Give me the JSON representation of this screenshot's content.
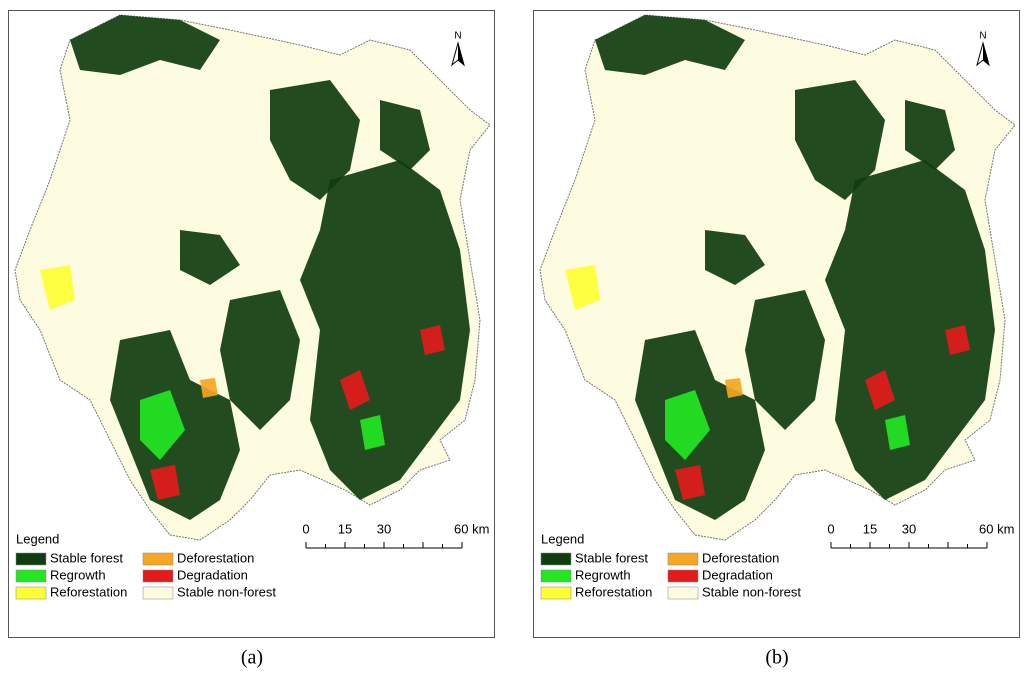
{
  "panels": [
    {
      "caption": "(a)",
      "north": "N",
      "legend_title": "Legend",
      "legend_items": [
        {
          "label": "Stable forest",
          "color": "#0f3d0f"
        },
        {
          "label": "Regrowth",
          "color": "#22e622"
        },
        {
          "label": "Reforestation",
          "color": "#ffff33"
        },
        {
          "label": "Deforestation",
          "color": "#f5a623"
        },
        {
          "label": "Degradation",
          "color": "#e41a1c"
        },
        {
          "label": "Stable non-forest",
          "color": "#fdfbe0"
        }
      ],
      "scale_labels": [
        "0",
        "15",
        "30",
        "60 km"
      ]
    },
    {
      "caption": "(b)",
      "north": "N",
      "legend_title": "Legend",
      "legend_items": [
        {
          "label": "Stable forest",
          "color": "#0f3d0f"
        },
        {
          "label": "Regrowth",
          "color": "#22e622"
        },
        {
          "label": "Reforestation",
          "color": "#ffff33"
        },
        {
          "label": "Deforestation",
          "color": "#f5a623"
        },
        {
          "label": "Degradation",
          "color": "#e41a1c"
        },
        {
          "label": "Stable non-forest",
          "color": "#fdfbe0"
        }
      ],
      "scale_labels": [
        "0",
        "15",
        "30",
        "60 km"
      ]
    }
  ]
}
